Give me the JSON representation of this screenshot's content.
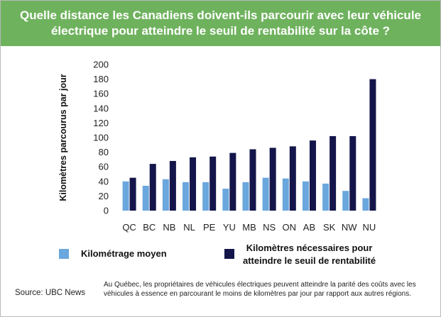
{
  "title": "Quelle distance les Canadiens doivent-ils parcourir avec leur véhicule électrique pour atteindre le seuil de rentabilité sur la côte ?",
  "colors": {
    "header": "#6fb25e",
    "series_avg": "#6aa7dd",
    "series_need": "#14154a"
  },
  "legend": {
    "avg": "Kilométrage moyen",
    "need_line1": "Kilomètres nécessaires pour",
    "need_line2": "atteindre le seuil de rentabilité"
  },
  "note": "Au Québec, les propriétaires de véhicules électriques peuvent atteindre la parité des coûts avec les véhicules à essence en parcourant le moins de kilomètres par jour par rapport aux autres régions.",
  "source": "Source: UBC News",
  "chart_data": {
    "type": "bar",
    "ylabel": "Kilomètres parcourus par jour",
    "xlabel": "",
    "ylim": [
      0,
      200
    ],
    "yticks": [
      0,
      20,
      40,
      60,
      80,
      100,
      120,
      140,
      160,
      180,
      200
    ],
    "grid": false,
    "categories": [
      "QC",
      "BC",
      "NB",
      "NL",
      "PE",
      "YU",
      "MB",
      "NS",
      "ON",
      "AB",
      "SK",
      "NW",
      "NU"
    ],
    "series": [
      {
        "name": "Kilométrage moyen",
        "values": [
          40,
          34,
          43,
          39,
          39,
          30,
          39,
          45,
          44,
          40,
          37,
          27,
          17
        ]
      },
      {
        "name": "Kilomètres nécessaires pour atteindre le seuil de rentabilité",
        "values": [
          45,
          64,
          68,
          73,
          74,
          79,
          84,
          86,
          88,
          96,
          102,
          102,
          180
        ]
      }
    ]
  }
}
